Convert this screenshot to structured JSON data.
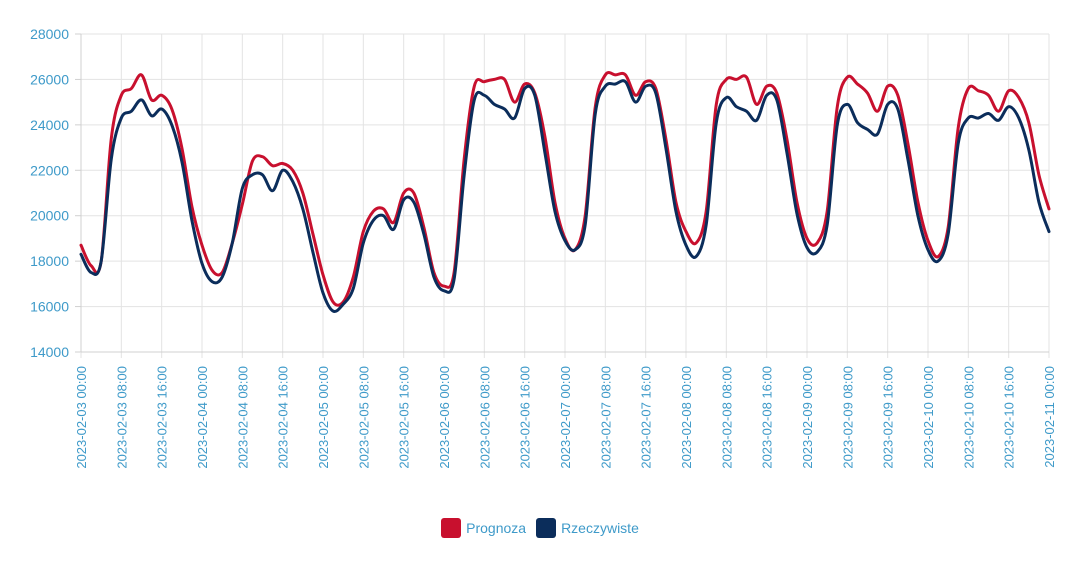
{
  "chart_data": {
    "type": "line",
    "ylim": [
      14000,
      28000
    ],
    "y_ticks": [
      14000,
      16000,
      18000,
      20000,
      22000,
      24000,
      26000,
      28000
    ],
    "x_range": [
      "2023-02-03 00:00",
      "2023-02-11 00:00"
    ],
    "x_ticks": [
      "2023-02-03 00:00",
      "2023-02-03 08:00",
      "2023-02-03 16:00",
      "2023-02-04 00:00",
      "2023-02-04 08:00",
      "2023-02-04 16:00",
      "2023-02-05 00:00",
      "2023-02-05 08:00",
      "2023-02-05 16:00",
      "2023-02-06 00:00",
      "2023-02-06 08:00",
      "2023-02-06 16:00",
      "2023-02-07 00:00",
      "2023-02-07 08:00",
      "2023-02-07 16:00",
      "2023-02-08 00:00",
      "2023-02-08 08:00",
      "2023-02-08 16:00",
      "2023-02-09 00:00",
      "2023-02-09 08:00",
      "2023-02-09 16:00",
      "2023-02-10 00:00",
      "2023-02-10 08:00",
      "2023-02-10 16:00",
      "2023-02-11 00:00"
    ],
    "grid": true,
    "legend_position": "bottom",
    "series": [
      {
        "name": "Prognoza",
        "color": "#c8102e",
        "points": [
          [
            "2023-02-03 00:00",
            18700
          ],
          [
            "2023-02-03 02:00",
            17800
          ],
          [
            "2023-02-03 04:00",
            18000
          ],
          [
            "2023-02-03 06:00",
            23400
          ],
          [
            "2023-02-03 08:00",
            25300
          ],
          [
            "2023-02-03 10:00",
            25600
          ],
          [
            "2023-02-03 12:00",
            26200
          ],
          [
            "2023-02-03 14:00",
            25100
          ],
          [
            "2023-02-03 16:00",
            25300
          ],
          [
            "2023-02-03 18:00",
            24700
          ],
          [
            "2023-02-03 20:00",
            23000
          ],
          [
            "2023-02-03 22:00",
            20400
          ],
          [
            "2023-02-04 00:00",
            18700
          ],
          [
            "2023-02-04 02:00",
            17600
          ],
          [
            "2023-02-04 04:00",
            17500
          ],
          [
            "2023-02-04 06:00",
            18800
          ],
          [
            "2023-02-04 08:00",
            20500
          ],
          [
            "2023-02-04 10:00",
            22400
          ],
          [
            "2023-02-04 12:00",
            22600
          ],
          [
            "2023-02-04 14:00",
            22200
          ],
          [
            "2023-02-04 16:00",
            22300
          ],
          [
            "2023-02-04 18:00",
            22000
          ],
          [
            "2023-02-04 20:00",
            21000
          ],
          [
            "2023-02-04 22:00",
            19200
          ],
          [
            "2023-02-05 00:00",
            17400
          ],
          [
            "2023-02-05 02:00",
            16200
          ],
          [
            "2023-02-05 04:00",
            16200
          ],
          [
            "2023-02-05 06:00",
            17300
          ],
          [
            "2023-02-05 08:00",
            19300
          ],
          [
            "2023-02-05 10:00",
            20200
          ],
          [
            "2023-02-05 12:00",
            20300
          ],
          [
            "2023-02-05 14:00",
            19700
          ],
          [
            "2023-02-05 16:00",
            21000
          ],
          [
            "2023-02-05 18:00",
            21000
          ],
          [
            "2023-02-05 20:00",
            19500
          ],
          [
            "2023-02-05 22:00",
            17500
          ],
          [
            "2023-02-06 00:00",
            16900
          ],
          [
            "2023-02-06 02:00",
            17500
          ],
          [
            "2023-02-06 04:00",
            22500
          ],
          [
            "2023-02-06 06:00",
            25700
          ],
          [
            "2023-02-06 08:00",
            25900
          ],
          [
            "2023-02-06 10:00",
            26000
          ],
          [
            "2023-02-06 12:00",
            26000
          ],
          [
            "2023-02-06 14:00",
            25000
          ],
          [
            "2023-02-06 16:00",
            25800
          ],
          [
            "2023-02-06 18:00",
            25400
          ],
          [
            "2023-02-06 20:00",
            23500
          ],
          [
            "2023-02-06 22:00",
            20600
          ],
          [
            "2023-02-07 00:00",
            19000
          ],
          [
            "2023-02-07 02:00",
            18500
          ],
          [
            "2023-02-07 04:00",
            20000
          ],
          [
            "2023-02-07 06:00",
            24800
          ],
          [
            "2023-02-07 08:00",
            26200
          ],
          [
            "2023-02-07 10:00",
            26200
          ],
          [
            "2023-02-07 12:00",
            26200
          ],
          [
            "2023-02-07 14:00",
            25300
          ],
          [
            "2023-02-07 16:00",
            25900
          ],
          [
            "2023-02-07 18:00",
            25600
          ],
          [
            "2023-02-07 20:00",
            23400
          ],
          [
            "2023-02-07 22:00",
            20600
          ],
          [
            "2023-02-08 00:00",
            19300
          ],
          [
            "2023-02-08 02:00",
            18800
          ],
          [
            "2023-02-08 04:00",
            20200
          ],
          [
            "2023-02-08 06:00",
            24900
          ],
          [
            "2023-02-08 08:00",
            26000
          ],
          [
            "2023-02-08 10:00",
            26000
          ],
          [
            "2023-02-08 12:00",
            26100
          ],
          [
            "2023-02-08 14:00",
            24900
          ],
          [
            "2023-02-08 16:00",
            25700
          ],
          [
            "2023-02-08 18:00",
            25400
          ],
          [
            "2023-02-08 20:00",
            23400
          ],
          [
            "2023-02-08 22:00",
            20600
          ],
          [
            "2023-02-09 00:00",
            19000
          ],
          [
            "2023-02-09 02:00",
            18800
          ],
          [
            "2023-02-09 04:00",
            20200
          ],
          [
            "2023-02-09 06:00",
            24800
          ],
          [
            "2023-02-09 08:00",
            26100
          ],
          [
            "2023-02-09 10:00",
            25800
          ],
          [
            "2023-02-09 12:00",
            25400
          ],
          [
            "2023-02-09 14:00",
            24600
          ],
          [
            "2023-02-09 16:00",
            25700
          ],
          [
            "2023-02-09 18:00",
            25300
          ],
          [
            "2023-02-09 20:00",
            23200
          ],
          [
            "2023-02-09 22:00",
            20600
          ],
          [
            "2023-02-10 00:00",
            18900
          ],
          [
            "2023-02-10 02:00",
            18200
          ],
          [
            "2023-02-10 04:00",
            19500
          ],
          [
            "2023-02-10 06:00",
            23900
          ],
          [
            "2023-02-10 08:00",
            25600
          ],
          [
            "2023-02-10 10:00",
            25500
          ],
          [
            "2023-02-10 12:00",
            25300
          ],
          [
            "2023-02-10 14:00",
            24600
          ],
          [
            "2023-02-10 16:00",
            25500
          ],
          [
            "2023-02-10 18:00",
            25200
          ],
          [
            "2023-02-10 20:00",
            24100
          ],
          [
            "2023-02-10 22:00",
            21800
          ],
          [
            "2023-02-11 00:00",
            20300
          ]
        ]
      },
      {
        "name": "Rzeczywiste",
        "color": "#0b2d5b",
        "points": [
          [
            "2023-02-03 00:00",
            18300
          ],
          [
            "2023-02-03 02:00",
            17500
          ],
          [
            "2023-02-03 04:00",
            18000
          ],
          [
            "2023-02-03 06:00",
            22500
          ],
          [
            "2023-02-03 08:00",
            24300
          ],
          [
            "2023-02-03 10:00",
            24600
          ],
          [
            "2023-02-03 12:00",
            25100
          ],
          [
            "2023-02-03 14:00",
            24400
          ],
          [
            "2023-02-03 16:00",
            24700
          ],
          [
            "2023-02-03 18:00",
            24000
          ],
          [
            "2023-02-03 20:00",
            22400
          ],
          [
            "2023-02-03 22:00",
            19800
          ],
          [
            "2023-02-04 00:00",
            17900
          ],
          [
            "2023-02-04 02:00",
            17100
          ],
          [
            "2023-02-04 04:00",
            17300
          ],
          [
            "2023-02-04 06:00",
            18800
          ],
          [
            "2023-02-04 08:00",
            21200
          ],
          [
            "2023-02-04 10:00",
            21800
          ],
          [
            "2023-02-04 12:00",
            21800
          ],
          [
            "2023-02-04 14:00",
            21100
          ],
          [
            "2023-02-04 16:00",
            22000
          ],
          [
            "2023-02-04 18:00",
            21500
          ],
          [
            "2023-02-04 20:00",
            20300
          ],
          [
            "2023-02-04 22:00",
            18400
          ],
          [
            "2023-02-05 00:00",
            16600
          ],
          [
            "2023-02-05 02:00",
            15800
          ],
          [
            "2023-02-05 04:00",
            16100
          ],
          [
            "2023-02-05 06:00",
            16800
          ],
          [
            "2023-02-05 08:00",
            18800
          ],
          [
            "2023-02-05 10:00",
            19800
          ],
          [
            "2023-02-05 12:00",
            20000
          ],
          [
            "2023-02-05 14:00",
            19400
          ],
          [
            "2023-02-05 16:00",
            20700
          ],
          [
            "2023-02-05 18:00",
            20600
          ],
          [
            "2023-02-05 20:00",
            19200
          ],
          [
            "2023-02-05 22:00",
            17300
          ],
          [
            "2023-02-06 00:00",
            16700
          ],
          [
            "2023-02-06 02:00",
            17200
          ],
          [
            "2023-02-06 04:00",
            21800
          ],
          [
            "2023-02-06 06:00",
            25100
          ],
          [
            "2023-02-06 08:00",
            25300
          ],
          [
            "2023-02-06 10:00",
            24900
          ],
          [
            "2023-02-06 12:00",
            24700
          ],
          [
            "2023-02-06 14:00",
            24300
          ],
          [
            "2023-02-06 16:00",
            25600
          ],
          [
            "2023-02-06 18:00",
            25300
          ],
          [
            "2023-02-06 20:00",
            22800
          ],
          [
            "2023-02-06 22:00",
            20200
          ],
          [
            "2023-02-07 00:00",
            18900
          ],
          [
            "2023-02-07 02:00",
            18500
          ],
          [
            "2023-02-07 04:00",
            19600
          ],
          [
            "2023-02-07 06:00",
            24500
          ],
          [
            "2023-02-07 08:00",
            25700
          ],
          [
            "2023-02-07 10:00",
            25800
          ],
          [
            "2023-02-07 12:00",
            25900
          ],
          [
            "2023-02-07 14:00",
            25000
          ],
          [
            "2023-02-07 16:00",
            25700
          ],
          [
            "2023-02-07 18:00",
            25400
          ],
          [
            "2023-02-07 20:00",
            23000
          ],
          [
            "2023-02-07 22:00",
            20200
          ],
          [
            "2023-02-08 00:00",
            18700
          ],
          [
            "2023-02-08 02:00",
            18200
          ],
          [
            "2023-02-08 04:00",
            19600
          ],
          [
            "2023-02-08 06:00",
            24100
          ],
          [
            "2023-02-08 08:00",
            25200
          ],
          [
            "2023-02-08 10:00",
            24800
          ],
          [
            "2023-02-08 12:00",
            24600
          ],
          [
            "2023-02-08 14:00",
            24200
          ],
          [
            "2023-02-08 16:00",
            25300
          ],
          [
            "2023-02-08 18:00",
            25100
          ],
          [
            "2023-02-08 20:00",
            22800
          ],
          [
            "2023-02-08 22:00",
            20100
          ],
          [
            "2023-02-09 00:00",
            18600
          ],
          [
            "2023-02-09 02:00",
            18400
          ],
          [
            "2023-02-09 04:00",
            19600
          ],
          [
            "2023-02-09 06:00",
            24000
          ],
          [
            "2023-02-09 08:00",
            24900
          ],
          [
            "2023-02-09 10:00",
            24100
          ],
          [
            "2023-02-09 12:00",
            23800
          ],
          [
            "2023-02-09 14:00",
            23600
          ],
          [
            "2023-02-09 16:00",
            24900
          ],
          [
            "2023-02-09 18:00",
            24700
          ],
          [
            "2023-02-09 20:00",
            22500
          ],
          [
            "2023-02-09 22:00",
            20000
          ],
          [
            "2023-02-10 00:00",
            18500
          ],
          [
            "2023-02-10 02:00",
            18000
          ],
          [
            "2023-02-10 04:00",
            19200
          ],
          [
            "2023-02-10 06:00",
            23200
          ],
          [
            "2023-02-10 08:00",
            24300
          ],
          [
            "2023-02-10 10:00",
            24300
          ],
          [
            "2023-02-10 12:00",
            24500
          ],
          [
            "2023-02-10 14:00",
            24200
          ],
          [
            "2023-02-10 16:00",
            24800
          ],
          [
            "2023-02-10 18:00",
            24300
          ],
          [
            "2023-02-10 20:00",
            22900
          ],
          [
            "2023-02-10 22:00",
            20600
          ],
          [
            "2023-02-11 00:00",
            19300
          ]
        ]
      }
    ]
  }
}
